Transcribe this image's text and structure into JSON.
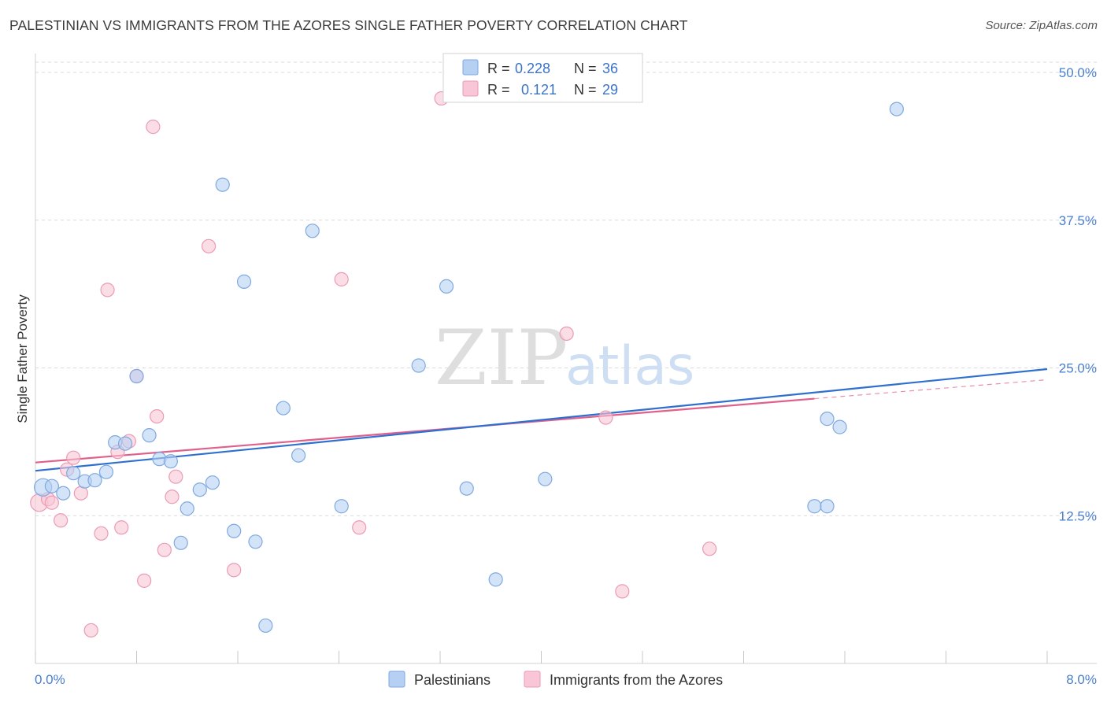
{
  "title": "PALESTINIAN VS IMMIGRANTS FROM THE AZORES SINGLE FATHER POVERTY CORRELATION CHART",
  "source": "Source: ZipAtlas.com",
  "watermark": {
    "part1": "ZIP",
    "part2": "atlas"
  },
  "legend": {
    "rows": [
      {
        "r_label": "R =",
        "r_value": "0.228",
        "n_label": "N =",
        "n_value": "36"
      },
      {
        "r_label": "R =",
        "r_value": "0.121",
        "n_label": "N =",
        "n_value": "29"
      }
    ]
  },
  "colors": {
    "blue_fill": "#b5d0f3",
    "blue_stroke": "#7fa9e0",
    "blue_line": "#2f6fd0",
    "pink_fill": "#f8c6d6",
    "pink_stroke": "#ec9ab5",
    "pink_line": "#e0608c",
    "grid": "#d9d9d9",
    "axis_text": "#4a7fcf"
  },
  "chart_data": {
    "type": "scatter",
    "title": "PALESTINIAN VS IMMIGRANTS FROM THE AZORES SINGLE FATHER POVERTY CORRELATION CHART",
    "xlabel": "",
    "ylabel": "Single Father Poverty",
    "xlim": [
      0,
      8
    ],
    "ylim": [
      0,
      52
    ],
    "x_tick_labels": [
      "0.0%",
      "8.0%"
    ],
    "y_ticks": [
      12.5,
      25.0,
      37.5,
      50.0
    ],
    "y_tick_labels": [
      "12.5%",
      "25.0%",
      "37.5%",
      "50.0%"
    ],
    "grid": true,
    "legend_position": "top-center",
    "series": [
      {
        "name": "Palestinians",
        "r": 0.228,
        "n": 36,
        "trend": [
          [
            0,
            16.3
          ],
          [
            8,
            24.9
          ]
        ],
        "points": [
          [
            0.06,
            14.9,
            1.3
          ],
          [
            0.13,
            15.0,
            1.0
          ],
          [
            0.22,
            14.4,
            1.0
          ],
          [
            0.3,
            16.1,
            1.0
          ],
          [
            0.39,
            15.4,
            1.0
          ],
          [
            0.47,
            15.5,
            1.0
          ],
          [
            0.56,
            16.2,
            1.0
          ],
          [
            0.63,
            18.7,
            1.0
          ],
          [
            0.71,
            18.6,
            1.0
          ],
          [
            0.8,
            24.3,
            1.0
          ],
          [
            0.9,
            19.3,
            1.0
          ],
          [
            0.98,
            17.3,
            1.0
          ],
          [
            1.07,
            17.1,
            1.0
          ],
          [
            1.15,
            10.2,
            1.0
          ],
          [
            1.2,
            13.1,
            1.0
          ],
          [
            1.3,
            14.7,
            1.0
          ],
          [
            1.4,
            15.3,
            1.0
          ],
          [
            1.48,
            40.5,
            1.0
          ],
          [
            1.57,
            11.2,
            1.0
          ],
          [
            1.65,
            32.3,
            1.0
          ],
          [
            1.74,
            10.3,
            1.0
          ],
          [
            1.82,
            3.2,
            1.0
          ],
          [
            1.96,
            21.6,
            1.0
          ],
          [
            2.08,
            17.6,
            1.0
          ],
          [
            2.19,
            36.6,
            1.0
          ],
          [
            2.42,
            13.3,
            1.0
          ],
          [
            3.03,
            25.2,
            1.0
          ],
          [
            3.25,
            31.9,
            1.0
          ],
          [
            3.41,
            14.8,
            1.0
          ],
          [
            3.64,
            7.1,
            1.0
          ],
          [
            4.03,
            15.6,
            1.0
          ],
          [
            6.16,
            13.3,
            1.0
          ],
          [
            6.26,
            13.3,
            1.0
          ],
          [
            6.26,
            20.7,
            1.0
          ],
          [
            6.36,
            20.0,
            1.0
          ],
          [
            6.81,
            46.9,
            1.0
          ]
        ]
      },
      {
        "name": "Immigrants from the Azores",
        "r": 0.121,
        "n": 29,
        "trend": [
          [
            0,
            17.0
          ],
          [
            6.16,
            22.4
          ]
        ],
        "trend_dashed": [
          [
            6.16,
            22.4
          ],
          [
            8,
            24.0
          ]
        ],
        "points": [
          [
            0.03,
            13.6,
            1.3
          ],
          [
            0.1,
            13.9,
            1.0
          ],
          [
            0.13,
            13.6,
            1.0
          ],
          [
            0.2,
            12.1,
            1.0
          ],
          [
            0.25,
            16.4,
            1.0
          ],
          [
            0.3,
            17.4,
            1.0
          ],
          [
            0.36,
            14.4,
            1.0
          ],
          [
            0.44,
            2.8,
            1.0
          ],
          [
            0.52,
            11.0,
            1.0
          ],
          [
            0.57,
            31.6,
            1.0
          ],
          [
            0.65,
            17.9,
            1.0
          ],
          [
            0.68,
            11.5,
            1.0
          ],
          [
            0.74,
            18.8,
            1.0
          ],
          [
            0.8,
            24.3,
            1.0
          ],
          [
            0.86,
            7.0,
            1.0
          ],
          [
            0.93,
            45.4,
            1.0
          ],
          [
            0.96,
            20.9,
            1.0
          ],
          [
            1.02,
            9.6,
            1.0
          ],
          [
            1.08,
            14.1,
            1.0
          ],
          [
            1.11,
            15.8,
            1.0
          ],
          [
            1.37,
            35.3,
            1.0
          ],
          [
            1.57,
            7.9,
            1.0
          ],
          [
            2.42,
            32.5,
            1.0
          ],
          [
            2.56,
            11.5,
            1.0
          ],
          [
            3.21,
            47.8,
            1.0
          ],
          [
            4.2,
            27.9,
            1.0
          ],
          [
            4.51,
            20.8,
            1.0
          ],
          [
            4.64,
            6.1,
            1.0
          ],
          [
            5.33,
            9.7,
            1.0
          ]
        ]
      }
    ]
  }
}
